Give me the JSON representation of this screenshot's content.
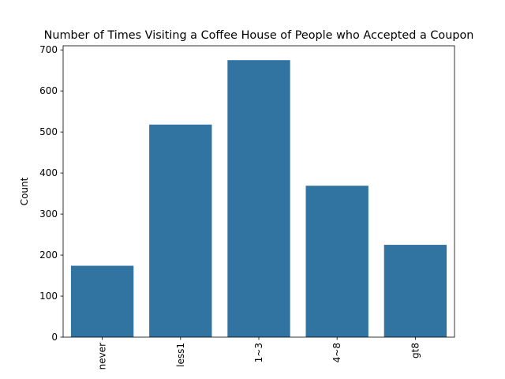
{
  "chart_data": {
    "type": "bar",
    "title": "Number of Times Visiting a Coffee House of People who Accepted a Coupon",
    "xlabel": "",
    "ylabel": "Count",
    "categories": [
      "never",
      "less1",
      "1~3",
      "4~8",
      "gt8"
    ],
    "values": [
      174,
      518,
      675,
      369,
      225
    ],
    "ylim": [
      0,
      710
    ],
    "yticks": [
      0,
      100,
      200,
      300,
      400,
      500,
      600,
      700
    ],
    "bar_color": "#3274a1",
    "grid": false,
    "legend": "none"
  }
}
